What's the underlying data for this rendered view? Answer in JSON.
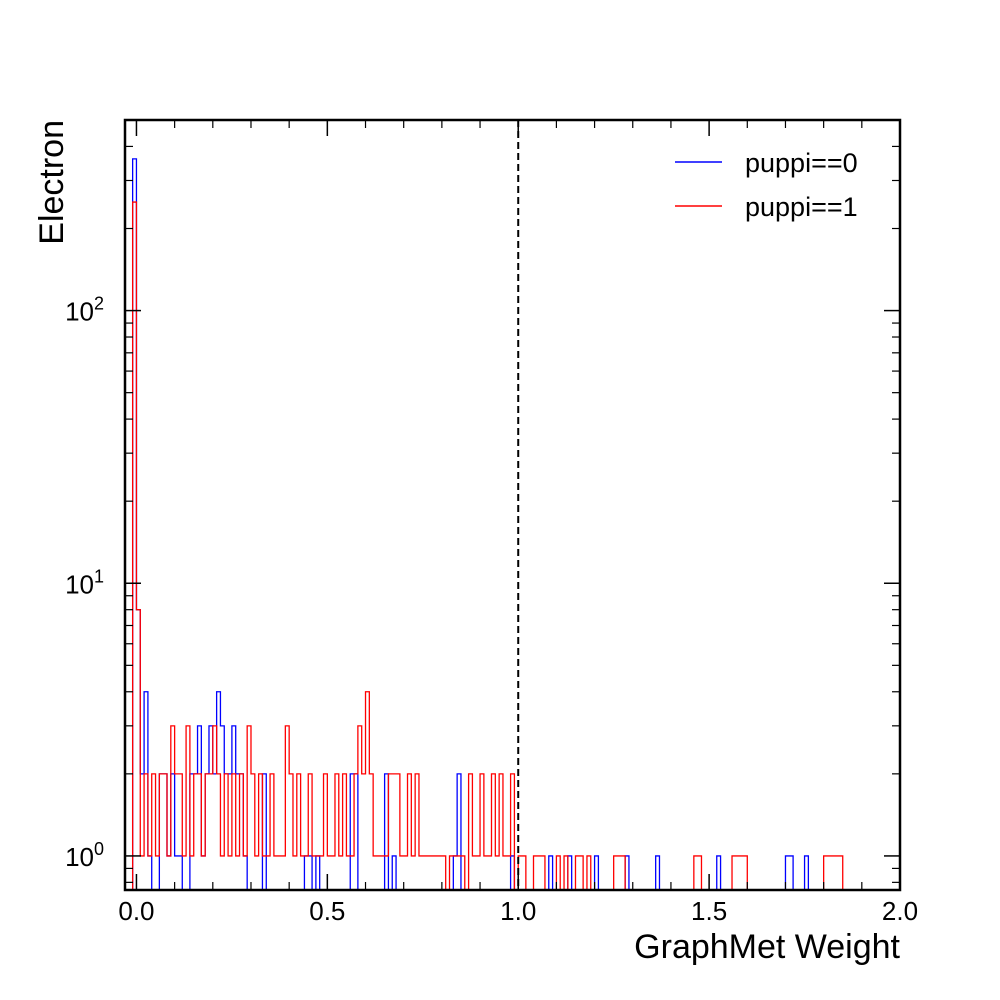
{
  "chart_data": {
    "type": "step",
    "xlabel": "GraphMet Weight",
    "ylabel": "Electron",
    "xlim": [
      -0.03,
      2.0
    ],
    "ylim": [
      0.75,
      500
    ],
    "yscale": "log",
    "grid": false,
    "legend_position": "top-right",
    "x_ticks": [
      "0.0",
      "0.5",
      "1.0",
      "1.5",
      "2.0"
    ],
    "x_tick_values": [
      0.0,
      0.5,
      1.0,
      1.5,
      2.0
    ],
    "y_tick_values": [
      1,
      10,
      100
    ],
    "reference_line": {
      "x": 1.0,
      "style": "dashed",
      "color": "#000000"
    },
    "bin_edges": {
      "start": -0.01,
      "width": 0.01,
      "count": 186
    },
    "series": [
      {
        "name": "puppi==0",
        "color": "#0000ff",
        "bins": [
          [
            0,
            360
          ],
          [
            1,
            8
          ],
          [
            2,
            2
          ],
          [
            3,
            4
          ],
          [
            4,
            1
          ],
          [
            7,
            2
          ],
          [
            8,
            2
          ],
          [
            9,
            1
          ],
          [
            10,
            2
          ],
          [
            11,
            1
          ],
          [
            12,
            1
          ],
          [
            15,
            2
          ],
          [
            16,
            2
          ],
          [
            17,
            3
          ],
          [
            18,
            1
          ],
          [
            19,
            2
          ],
          [
            20,
            3
          ],
          [
            21,
            2
          ],
          [
            22,
            4
          ],
          [
            23,
            3
          ],
          [
            24,
            2
          ],
          [
            25,
            2
          ],
          [
            26,
            3
          ],
          [
            27,
            2
          ],
          [
            28,
            2
          ],
          [
            29,
            1
          ],
          [
            34,
            2
          ],
          [
            45,
            1
          ],
          [
            46,
            1
          ],
          [
            48,
            1
          ],
          [
            57,
            2
          ],
          [
            58,
            2
          ],
          [
            66,
            2
          ],
          [
            68,
            1
          ],
          [
            84,
            1
          ],
          [
            85,
            2
          ],
          [
            99,
            1
          ],
          [
            109,
            1
          ],
          [
            114,
            1
          ],
          [
            121,
            1
          ],
          [
            129,
            1
          ],
          [
            137,
            1
          ],
          [
            153,
            1
          ],
          [
            171,
            1
          ],
          [
            172,
            1
          ],
          [
            176,
            1
          ]
        ]
      },
      {
        "name": "puppi==1",
        "color": "#ff0000",
        "bins": [
          [
            0,
            250
          ],
          [
            1,
            8
          ],
          [
            2,
            1
          ],
          [
            3,
            2
          ],
          [
            4,
            1
          ],
          [
            5,
            2
          ],
          [
            6,
            1
          ],
          [
            7,
            2
          ],
          [
            8,
            2
          ],
          [
            9,
            1
          ],
          [
            10,
            3
          ],
          [
            11,
            2
          ],
          [
            12,
            2
          ],
          [
            13,
            1
          ],
          [
            14,
            3
          ],
          [
            15,
            1
          ],
          [
            16,
            2
          ],
          [
            17,
            2
          ],
          [
            18,
            1
          ],
          [
            19,
            2
          ],
          [
            20,
            2
          ],
          [
            21,
            3
          ],
          [
            22,
            2
          ],
          [
            23,
            1
          ],
          [
            24,
            2
          ],
          [
            25,
            1
          ],
          [
            26,
            2
          ],
          [
            27,
            1
          ],
          [
            28,
            2
          ],
          [
            29,
            1
          ],
          [
            30,
            3
          ],
          [
            31,
            2
          ],
          [
            32,
            1
          ],
          [
            33,
            2
          ],
          [
            34,
            1
          ],
          [
            35,
            1
          ],
          [
            36,
            2
          ],
          [
            37,
            1
          ],
          [
            38,
            1
          ],
          [
            39,
            1
          ],
          [
            40,
            3
          ],
          [
            41,
            2
          ],
          [
            42,
            1
          ],
          [
            43,
            2
          ],
          [
            44,
            1
          ],
          [
            45,
            1
          ],
          [
            46,
            2
          ],
          [
            47,
            1
          ],
          [
            48,
            1
          ],
          [
            49,
            1
          ],
          [
            50,
            2
          ],
          [
            51,
            1
          ],
          [
            52,
            1
          ],
          [
            53,
            2
          ],
          [
            54,
            1
          ],
          [
            55,
            2
          ],
          [
            56,
            1
          ],
          [
            57,
            1
          ],
          [
            58,
            2
          ],
          [
            59,
            3
          ],
          [
            60,
            2
          ],
          [
            61,
            4
          ],
          [
            62,
            2
          ],
          [
            63,
            1
          ],
          [
            64,
            1
          ],
          [
            65,
            1
          ],
          [
            66,
            1
          ],
          [
            67,
            2
          ],
          [
            68,
            2
          ],
          [
            69,
            2
          ],
          [
            70,
            1
          ],
          [
            71,
            1
          ],
          [
            72,
            2
          ],
          [
            73,
            1
          ],
          [
            74,
            2
          ],
          [
            75,
            1
          ],
          [
            76,
            1
          ],
          [
            77,
            1
          ],
          [
            78,
            1
          ],
          [
            79,
            1
          ],
          [
            80,
            1
          ],
          [
            81,
            1
          ],
          [
            83,
            1
          ],
          [
            84,
            1
          ],
          [
            85,
            1
          ],
          [
            86,
            1
          ],
          [
            88,
            2
          ],
          [
            89,
            1
          ],
          [
            90,
            1
          ],
          [
            91,
            2
          ],
          [
            92,
            1
          ],
          [
            93,
            1
          ],
          [
            94,
            2
          ],
          [
            95,
            1
          ],
          [
            96,
            2
          ],
          [
            97,
            1
          ],
          [
            98,
            1
          ],
          [
            99,
            2
          ],
          [
            101,
            1
          ],
          [
            102,
            1
          ],
          [
            105,
            1
          ],
          [
            106,
            1
          ],
          [
            107,
            1
          ],
          [
            111,
            1
          ],
          [
            113,
            1
          ],
          [
            116,
            1
          ],
          [
            117,
            1
          ],
          [
            119,
            1
          ],
          [
            126,
            1
          ],
          [
            127,
            1
          ],
          [
            128,
            1
          ],
          [
            147,
            1
          ],
          [
            148,
            1
          ],
          [
            157,
            1
          ],
          [
            158,
            1
          ],
          [
            159,
            1
          ],
          [
            160,
            1
          ],
          [
            181,
            1
          ],
          [
            182,
            1
          ],
          [
            183,
            1
          ],
          [
            184,
            1
          ],
          [
            185,
            1
          ]
        ]
      }
    ]
  }
}
